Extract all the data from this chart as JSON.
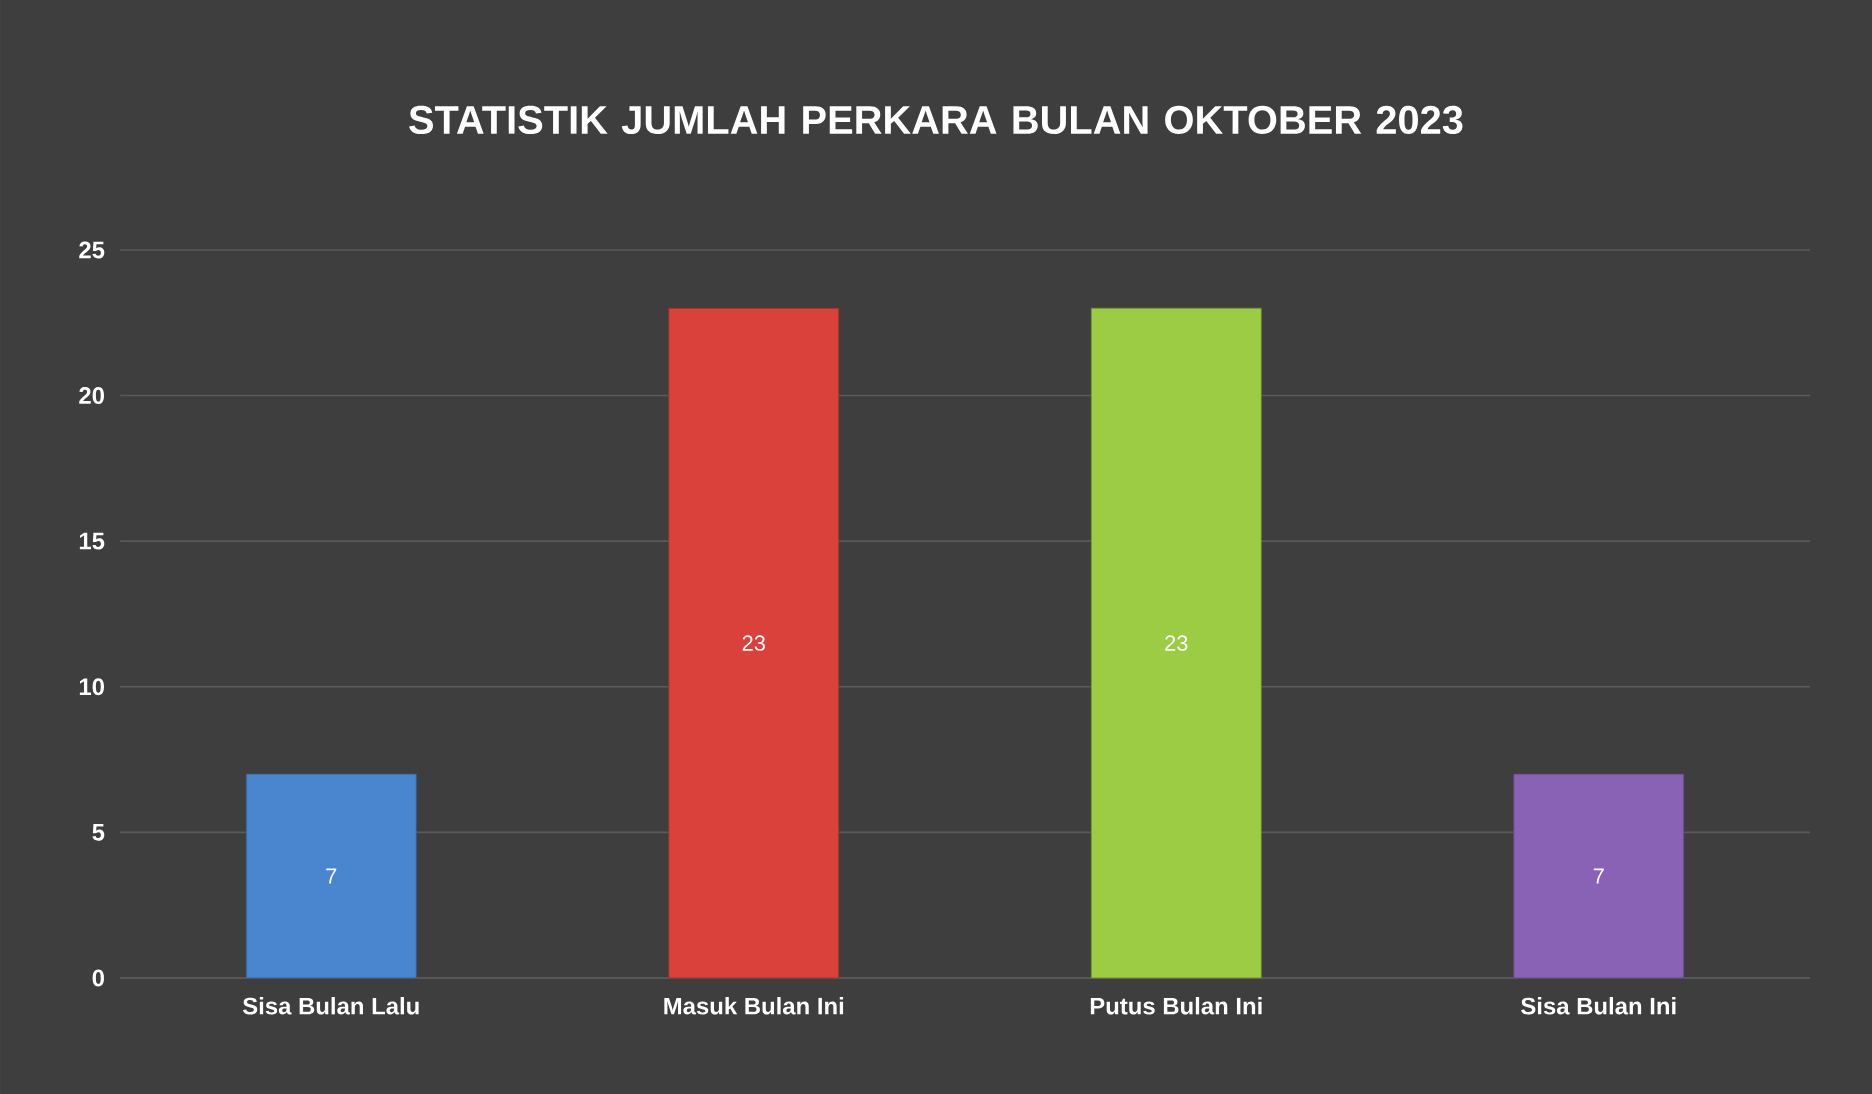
{
  "chart_data": {
    "type": "bar",
    "title": "STATISTIK JUMLAH PERKARA BULAN OKTOBER 2023",
    "categories": [
      "Sisa Bulan Lalu",
      "Masuk Bulan Ini",
      "Putus Bulan Ini",
      "Sisa Bulan Ini"
    ],
    "values": [
      7,
      23,
      23,
      7
    ],
    "colors": [
      "#4a86d0",
      "#d9413a",
      "#9ccc44",
      "#8a62b5"
    ],
    "ylim": [
      0,
      25
    ],
    "yticks": [
      0,
      5,
      10,
      15,
      20,
      25
    ],
    "grid": "y",
    "data_labels": true
  }
}
